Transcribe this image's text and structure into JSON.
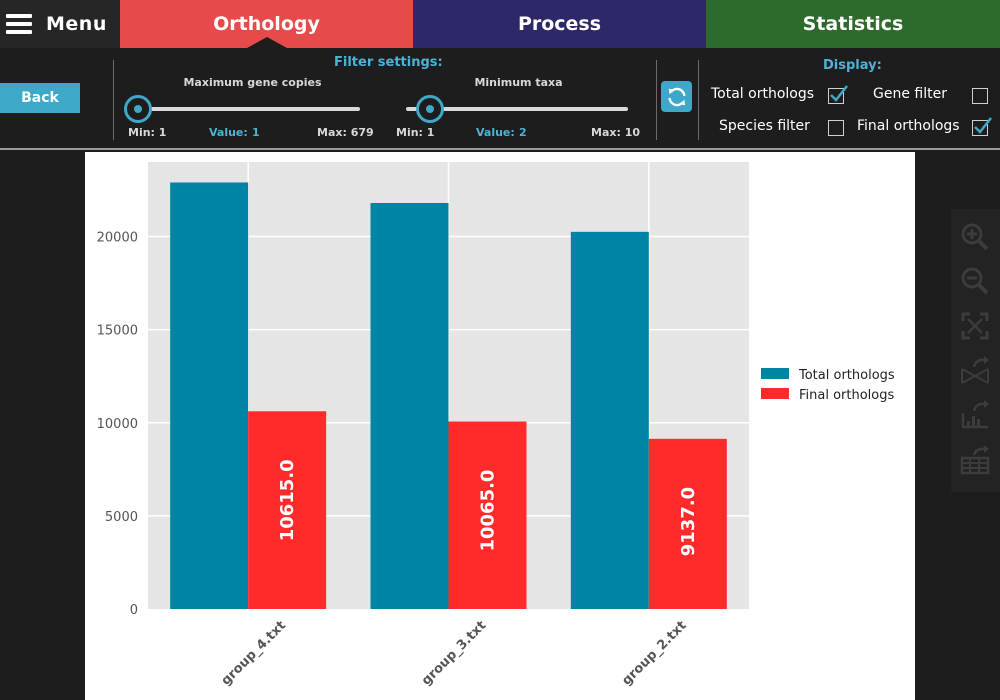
{
  "nav": {
    "menu_label": "Menu",
    "tabs": [
      {
        "label": "Orthology",
        "color": "#e84a4b"
      },
      {
        "label": "Process",
        "color": "#2d2969"
      },
      {
        "label": "Statistics",
        "color": "#2c6b2b"
      }
    ]
  },
  "settings": {
    "back_label": "Back",
    "filter_title": "Filter settings:",
    "gene_slider": {
      "title": "Maximum gene copies",
      "min_label": "Min: 1",
      "value_label": "Value:",
      "value": "1",
      "max_label": "Max: 679"
    },
    "taxa_slider": {
      "title": "Minimum taxa",
      "min_label": "Min: 1",
      "value_label": "Value:",
      "value": "2",
      "max_label": "Max: 10"
    },
    "display_title": "Display:",
    "options": [
      {
        "label": "Total orthologs",
        "checked": true
      },
      {
        "label": "Gene filter",
        "checked": false
      },
      {
        "label": "Species filter",
        "checked": false
      },
      {
        "label": "Final orthologs",
        "checked": true
      }
    ]
  },
  "chart_data": {
    "type": "bar",
    "categories": [
      "group_4.txt",
      "group_3.txt",
      "group_2.txt"
    ],
    "series": [
      {
        "name": "Total orthologs",
        "color": "#0084a3",
        "values": [
          22900,
          21800,
          20250
        ]
      },
      {
        "name": "Final orthologs",
        "color": "#ff2a2a",
        "values": [
          10615,
          10065,
          9137
        ]
      }
    ],
    "data_labels": [
      "10615.0",
      "10065.0",
      "9137.0"
    ],
    "yticks": [
      0,
      5000,
      10000,
      15000,
      20000
    ],
    "ytick_labels": [
      "0",
      "5000",
      "10000",
      "15000",
      "20000"
    ],
    "ylim": [
      0,
      24000
    ],
    "grid": true,
    "legend_position": "right"
  },
  "tools": [
    "zoom-in-icon",
    "zoom-out-icon",
    "fit-screen-icon",
    "export-graph-icon",
    "export-data-icon",
    "export-table-icon"
  ]
}
